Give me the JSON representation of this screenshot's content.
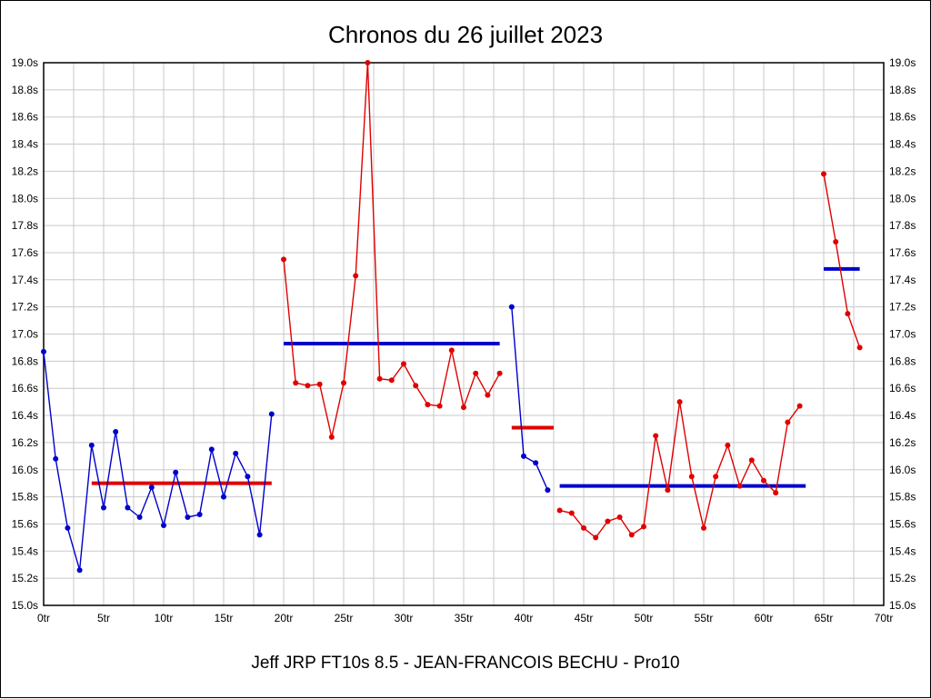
{
  "page": {
    "footer": "Jeff JRP FT10s 8.5 - JEAN-FRANCOIS BECHU - Pro10"
  },
  "chart_data": {
    "type": "line",
    "title": "Chronos du 26 juillet 2023",
    "xlabel": "",
    "ylabel": "",
    "xlim": [
      0,
      70
    ],
    "ylim": [
      15.0,
      19.0
    ],
    "grid": true,
    "x_unit": "tr",
    "y_unit": "s",
    "legend": "none",
    "x_tick_values": [
      0,
      5,
      10,
      15,
      20,
      25,
      30,
      35,
      40,
      45,
      50,
      55,
      60,
      65,
      70
    ],
    "x_tick_labels": [
      "0tr",
      "5tr",
      "10tr",
      "15tr",
      "20tr",
      "25tr",
      "30tr",
      "35tr",
      "40tr",
      "45tr",
      "50tr",
      "55tr",
      "60tr",
      "65tr",
      "70tr"
    ],
    "y_tick_values": [
      15.0,
      15.2,
      15.4,
      15.6,
      15.8,
      16.0,
      16.2,
      16.4,
      16.6,
      16.8,
      17.0,
      17.2,
      17.4,
      17.6,
      17.8,
      18.0,
      18.2,
      18.4,
      18.6,
      18.8,
      19.0
    ],
    "y_tick_labels": [
      "15.0s",
      "15.2s",
      "15.4s",
      "15.6s",
      "15.8s",
      "16.0s",
      "16.2s",
      "16.4s",
      "16.6s",
      "16.8s",
      "17.0s",
      "17.2s",
      "17.4s",
      "17.6s",
      "17.8s",
      "18.0s",
      "18.2s",
      "18.4s",
      "18.6s",
      "18.8s",
      "19.0s"
    ],
    "colors": {
      "blue": "#0000cc",
      "red": "#e00000",
      "grid": "#c8c8c8",
      "axis": "#000000"
    },
    "series": [
      {
        "name": "stint-1-laps",
        "color": "blue",
        "x": [
          0,
          1,
          2,
          3,
          4,
          5,
          6,
          7,
          8,
          9,
          10,
          11,
          12,
          13,
          14,
          15,
          16,
          17,
          18,
          19
        ],
        "y": [
          16.87,
          16.08,
          15.57,
          15.26,
          16.18,
          15.72,
          16.28,
          15.72,
          15.65,
          15.87,
          15.59,
          15.98,
          15.65,
          15.67,
          16.15,
          15.8,
          16.12,
          15.95,
          15.52,
          16.41
        ]
      },
      {
        "name": "stint-2-laps",
        "color": "red",
        "x": [
          20,
          21,
          22,
          23,
          24,
          25,
          26,
          27,
          28,
          29,
          30,
          31,
          32,
          33,
          34,
          35,
          36,
          37,
          38
        ],
        "y": [
          17.55,
          16.64,
          16.62,
          16.63,
          16.24,
          16.64,
          17.43,
          19.0,
          16.67,
          16.66,
          16.78,
          16.62,
          16.48,
          16.47,
          16.88,
          16.46,
          16.71,
          16.55,
          16.71
        ]
      },
      {
        "name": "stint-3-laps",
        "color": "blue",
        "x": [
          39,
          40,
          41,
          42
        ],
        "y": [
          17.2,
          16.1,
          16.05,
          15.85
        ]
      },
      {
        "name": "stint-4-laps",
        "color": "red",
        "x": [
          43,
          44,
          45,
          46,
          47,
          48,
          49,
          50,
          51,
          52,
          53,
          54,
          55,
          56,
          57,
          58,
          59,
          60,
          61,
          62,
          63
        ],
        "y": [
          15.7,
          15.68,
          15.57,
          15.5,
          15.62,
          15.65,
          15.52,
          15.58,
          16.25,
          15.85,
          16.5,
          15.95,
          15.57,
          15.95,
          16.18,
          15.88,
          16.07,
          15.92,
          15.83,
          16.35,
          16.47
        ]
      },
      {
        "name": "stint-5-laps",
        "color": "red",
        "x": [
          65,
          66,
          67,
          68
        ],
        "y": [
          18.18,
          17.68,
          17.15,
          16.9
        ]
      }
    ],
    "average_lines": [
      {
        "name": "avg-line-stint-1",
        "color": "red",
        "x1": 4,
        "x2": 19,
        "y": 15.9
      },
      {
        "name": "avg-line-stint-2",
        "color": "blue",
        "x1": 20,
        "x2": 38,
        "y": 16.93
      },
      {
        "name": "avg-line-stint-3",
        "color": "red",
        "x1": 39,
        "x2": 42.5,
        "y": 16.31
      },
      {
        "name": "avg-line-stint-4",
        "color": "blue",
        "x1": 43,
        "x2": 63.5,
        "y": 15.88
      },
      {
        "name": "avg-line-stint-5",
        "color": "blue",
        "x1": 65,
        "x2": 68,
        "y": 17.48
      }
    ]
  }
}
